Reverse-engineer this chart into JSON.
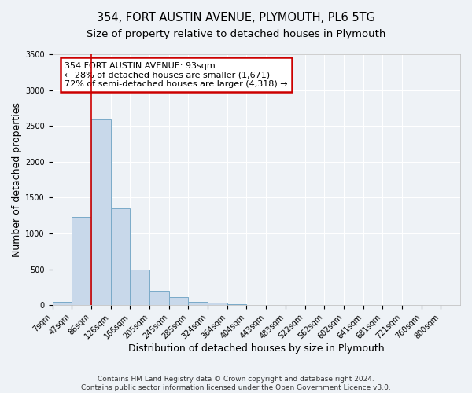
{
  "title": "354, FORT AUSTIN AVENUE, PLYMOUTH, PL6 5TG",
  "subtitle": "Size of property relative to detached houses in Plymouth",
  "xlabel": "Distribution of detached houses by size in Plymouth",
  "ylabel": "Number of detached properties",
  "bar_labels": [
    "7sqm",
    "47sqm",
    "86sqm",
    "126sqm",
    "166sqm",
    "205sqm",
    "245sqm",
    "285sqm",
    "324sqm",
    "364sqm",
    "404sqm",
    "443sqm",
    "483sqm",
    "522sqm",
    "562sqm",
    "602sqm",
    "641sqm",
    "681sqm",
    "721sqm",
    "760sqm",
    "800sqm"
  ],
  "bar_values": [
    50,
    1230,
    2590,
    1350,
    500,
    200,
    115,
    50,
    30,
    10,
    5,
    2,
    0,
    0,
    0,
    0,
    0,
    0,
    0,
    0,
    0
  ],
  "bar_color": "#c8d8ea",
  "bar_edge_color": "#7aaac8",
  "ylim": [
    0,
    3500
  ],
  "yticks": [
    0,
    500,
    1000,
    1500,
    2000,
    2500,
    3000,
    3500
  ],
  "property_line_index": 2,
  "property_line_label": "354 FORT AUSTIN AVENUE: 93sqm",
  "annotation_line1": "← 28% of detached houses are smaller (1,671)",
  "annotation_line2": "72% of semi-detached houses are larger (4,318) →",
  "annotation_box_color": "#ffffff",
  "annotation_box_edge": "#cc0000",
  "red_line_color": "#cc0000",
  "footer1": "Contains HM Land Registry data © Crown copyright and database right 2024.",
  "footer2": "Contains public sector information licensed under the Open Government Licence v3.0.",
  "background_color": "#eef2f6",
  "grid_color": "#ffffff",
  "title_fontsize": 10.5,
  "subtitle_fontsize": 9.5,
  "axis_label_fontsize": 9,
  "tick_fontsize": 7,
  "annotation_fontsize": 8,
  "footer_fontsize": 6.5
}
